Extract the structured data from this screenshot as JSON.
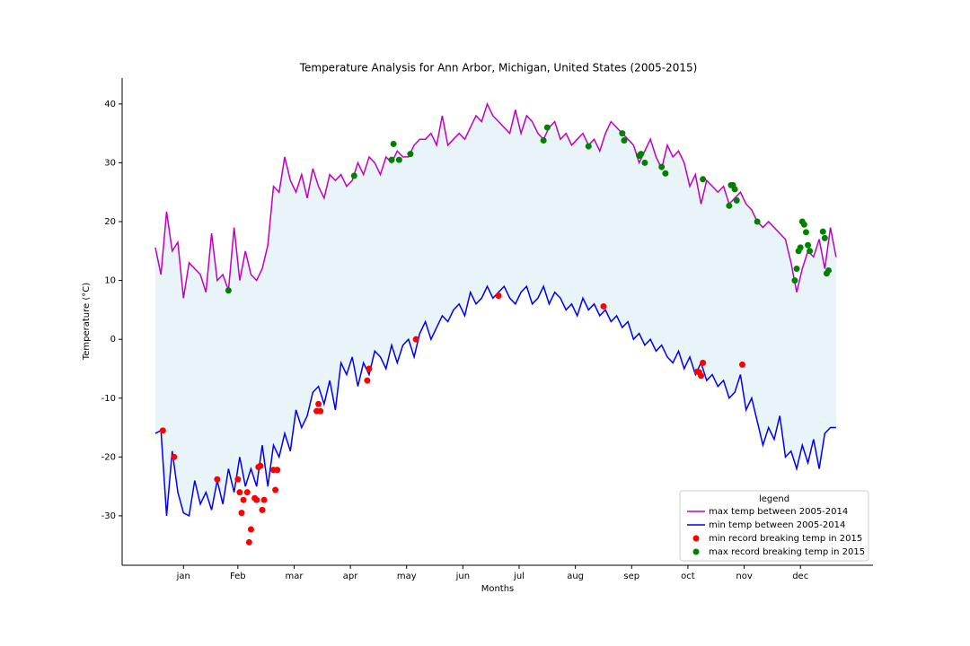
{
  "chart_data": {
    "type": "line",
    "title": "Temperature  Analysis for  Ann Arbor, Michigan, United States (2005-2015)",
    "xlabel": "Months",
    "ylabel": "Temperature (°C)",
    "xlim": [
      -16.7,
      383.7
    ],
    "ylim": [
      -38.4,
      44.4
    ],
    "xticks": [
      {
        "value": 16,
        "label": "jan"
      },
      {
        "value": 45,
        "label": "Feb"
      },
      {
        "value": 75,
        "label": "mar"
      },
      {
        "value": 105,
        "label": "apr"
      },
      {
        "value": 135,
        "label": "may"
      },
      {
        "value": 165,
        "label": "jun"
      },
      {
        "value": 195,
        "label": "jul"
      },
      {
        "value": 225,
        "label": "aug"
      },
      {
        "value": 255,
        "label": "sep"
      },
      {
        "value": 285,
        "label": "oct"
      },
      {
        "value": 315,
        "label": "nov"
      },
      {
        "value": 345,
        "label": "dec"
      }
    ],
    "yticks": [
      -30,
      -20,
      -10,
      0,
      10,
      20,
      30,
      40
    ],
    "fill_color": "#e8f4f7",
    "legend_title": "legend",
    "legend_position": "lower right",
    "x": [
      1,
      4,
      7,
      10,
      13,
      16,
      19,
      22,
      25,
      28,
      31,
      34,
      37,
      40,
      43,
      46,
      49,
      52,
      55,
      58,
      61,
      64,
      67,
      70,
      73,
      76,
      79,
      82,
      85,
      88,
      91,
      94,
      97,
      100,
      103,
      106,
      109,
      112,
      115,
      118,
      121,
      124,
      127,
      130,
      133,
      136,
      139,
      142,
      145,
      148,
      151,
      154,
      157,
      160,
      163,
      166,
      169,
      172,
      175,
      178,
      181,
      184,
      187,
      190,
      193,
      196,
      199,
      202,
      205,
      208,
      211,
      214,
      217,
      220,
      223,
      226,
      229,
      232,
      235,
      238,
      241,
      244,
      247,
      250,
      253,
      256,
      259,
      262,
      265,
      268,
      271,
      274,
      277,
      280,
      283,
      286,
      289,
      292,
      295,
      298,
      301,
      304,
      307,
      310,
      313,
      316,
      319,
      322,
      325,
      328,
      331,
      334,
      337,
      340,
      343,
      346,
      349,
      352,
      355,
      358,
      361,
      364
    ],
    "series": [
      {
        "name": "max temp between 2005-2014",
        "type": "line",
        "color": "#bf00bf",
        "values": [
          15.6,
          11,
          21.7,
          15,
          16.5,
          7,
          13,
          12,
          11,
          8,
          18,
          10,
          11,
          8.3,
          19,
          10,
          15,
          11,
          10,
          12,
          16,
          26,
          25,
          31,
          27,
          25,
          28,
          24,
          29,
          26,
          24,
          28,
          27,
          28,
          26,
          27,
          30,
          28,
          31,
          30,
          28,
          31,
          30,
          32,
          31,
          31,
          33,
          34,
          34,
          35,
          33,
          38,
          33,
          34,
          35,
          34,
          36,
          38,
          37,
          40,
          38,
          37,
          36,
          35,
          39,
          35,
          38,
          37,
          35,
          34,
          36,
          37,
          34,
          35,
          33,
          34,
          35,
          33,
          34,
          32,
          35,
          37,
          36,
          35,
          34,
          33,
          30,
          32,
          34,
          31,
          29,
          33,
          31,
          32,
          30,
          26,
          28,
          23,
          27,
          26,
          25,
          26,
          23,
          24,
          25,
          23,
          22,
          20,
          19,
          20,
          19,
          18,
          17,
          13,
          8,
          12,
          15,
          14,
          17,
          12,
          19,
          14
        ]
      },
      {
        "name": "min temp between 2005-2014",
        "type": "line",
        "color": "#0000ee",
        "values": [
          -16,
          -15.5,
          -30,
          -19,
          -26,
          -29.5,
          -30,
          -24,
          -28,
          -26,
          -29,
          -24,
          -28,
          -22,
          -26,
          -20,
          -25,
          -22,
          -25,
          -18,
          -25,
          -18,
          -20,
          -16,
          -19,
          -12,
          -15,
          -13,
          -9,
          -8,
          -11,
          -7,
          -12,
          -4,
          -6,
          -3,
          -8,
          -4,
          -6,
          -2,
          -3,
          -5,
          -1,
          -4,
          -1,
          0,
          -3,
          1,
          3,
          0,
          2,
          4,
          3,
          5,
          6,
          4,
          8,
          6,
          7,
          9,
          7,
          8,
          9,
          7,
          6,
          8,
          9,
          6,
          7,
          9,
          6,
          8,
          7,
          5,
          6,
          4,
          7,
          5,
          6,
          4,
          5,
          3,
          4,
          2,
          3,
          0,
          1,
          -1,
          0,
          -2,
          -1,
          -3,
          -4,
          -2,
          -5,
          -3,
          -6,
          -4,
          -7,
          -6,
          -8,
          -7,
          -10,
          -9,
          -6,
          -12,
          -10,
          -14,
          -18,
          -15,
          -17,
          -13,
          -20,
          -19,
          -22,
          -18,
          -21,
          -17,
          -22,
          -16,
          -15,
          -15
        ]
      },
      {
        "name": "min record breaking temp in 2015",
        "type": "scatter",
        "color": "#ff0000",
        "x": [
          5,
          11,
          34,
          45,
          46,
          47,
          48,
          50,
          51,
          52,
          54,
          55,
          56,
          57,
          58,
          59,
          64,
          65,
          66,
          87,
          88,
          89,
          114,
          115,
          140,
          184,
          240,
          290,
          291,
          292,
          293,
          314
        ],
        "values": [
          -15.5,
          -20,
          -23.8,
          -23.8,
          -26,
          -29.5,
          -27.3,
          -26,
          -34.5,
          -32.3,
          -27,
          -27.3,
          -21.7,
          -21.5,
          -29,
          -27.3,
          -22.2,
          -25.6,
          -22.2,
          -12.2,
          -11,
          -12.2,
          -7,
          -5,
          0,
          7.4,
          5.6,
          -5.5,
          -5.6,
          -6.2,
          -4,
          -4.3
        ]
      },
      {
        "name": "max record breaking temp in 2015",
        "type": "scatter",
        "color": "#008000",
        "x": [
          40,
          107,
          127,
          128,
          131,
          137,
          208,
          210,
          232,
          250,
          251,
          259,
          260,
          262,
          271,
          273,
          293,
          307,
          308,
          309,
          310,
          311,
          322,
          342,
          343,
          344,
          345,
          346,
          347,
          348,
          349,
          350,
          357,
          358,
          359,
          360
        ],
        "values": [
          8.3,
          27.8,
          30.5,
          33.2,
          30.5,
          31.5,
          33.8,
          36,
          32.8,
          35,
          33.8,
          31.2,
          31.5,
          30,
          29.3,
          28.2,
          27.2,
          22.7,
          26.2,
          26.2,
          25.5,
          23.6,
          20,
          10,
          12,
          15,
          15.6,
          20,
          19.5,
          18.2,
          16,
          15,
          18.3,
          17.2,
          11.2,
          11.7
        ]
      }
    ]
  }
}
